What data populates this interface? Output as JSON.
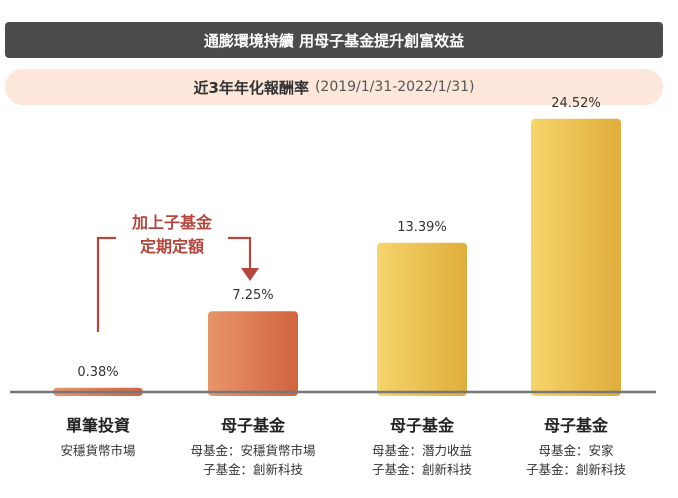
{
  "header": {
    "title": "通膨環境持續 用母子基金提升創富效益",
    "subtitle_main": "近3年年化報酬率",
    "subtitle_period": "(2019/1/31-2022/1/31)"
  },
  "annotation": {
    "lines": [
      "加上子基金",
      "定期定額"
    ]
  },
  "chart_data": {
    "type": "bar",
    "title": "近3年年化報酬率 (2019/1/31-2022/1/31)",
    "categories": [
      "單筆投資",
      "母子基金",
      "母子基金",
      "母子基金"
    ],
    "category_sublabels": [
      [
        "安穩貨幣市場"
      ],
      [
        "母基金：安穩貨幣市場",
        "子基金：創新科技"
      ],
      [
        "母基金：潛力收益",
        "子基金：創新科技"
      ],
      [
        "母基金：安家",
        "子基金：創新科技"
      ]
    ],
    "values": [
      0.38,
      7.25,
      13.39,
      24.52
    ],
    "value_labels": [
      "0.38%",
      "7.25%",
      "13.39%",
      "24.52%"
    ],
    "unit": "%",
    "ylim": [
      0,
      28
    ],
    "grid": false,
    "legend": "none",
    "colors": {
      "orange_bar_start": "#e8956a",
      "orange_bar_end": "#d0643f",
      "gold_bar_start": "#f6d56b",
      "gold_bar_end": "#dfad3c",
      "baseline": "#777777",
      "annotation": "#b5463e"
    }
  }
}
